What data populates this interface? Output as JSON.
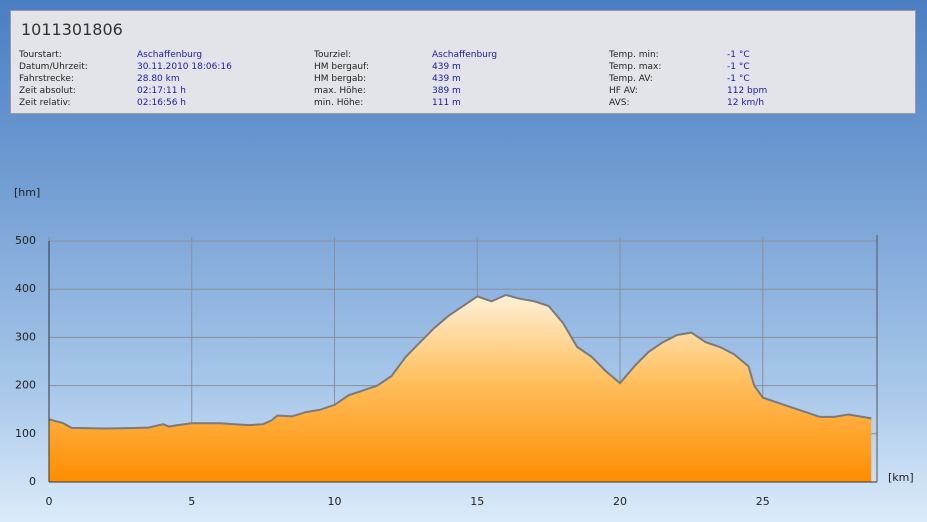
{
  "header": {
    "title": "1011301806"
  },
  "info": {
    "columns": [
      [
        [
          "Tourstart:",
          "Aschaffenburg"
        ],
        [
          "Datum/Uhrzeit:",
          "30.11.2010 18:06:16"
        ],
        [
          "Fahrstrecke:",
          "28.80 km"
        ],
        [
          "Zeit absolut:",
          "02:17:11 h"
        ],
        [
          "Zeit relativ:",
          "02:16:56 h"
        ]
      ],
      [
        [
          "Tourziel:",
          "Aschaffenburg"
        ],
        [
          "HM bergauf:",
          "439 m"
        ],
        [
          "HM bergab:",
          "439 m"
        ],
        [
          "max. Höhe:",
          "389 m"
        ],
        [
          "min. Höhe:",
          "111 m"
        ]
      ],
      [
        [
          "Temp. min:",
          "-1 °C"
        ],
        [
          "Temp. max:",
          "-1 °C"
        ],
        [
          "Temp. AV:",
          "-1 °C"
        ],
        [
          "HF AV:",
          "112 bpm"
        ],
        [
          "AVS:",
          "12 km/h"
        ]
      ]
    ]
  },
  "chart_data": {
    "type": "area",
    "y_label": "[hm]",
    "x_label": "[km]",
    "x": [
      0,
      0.5,
      0.8,
      1,
      2,
      3,
      3.5,
      4,
      4.2,
      4.5,
      5,
      6,
      6.5,
      7,
      7.5,
      7.8,
      8,
      8.5,
      9,
      9.5,
      10,
      10.5,
      11,
      11.5,
      12,
      12.5,
      13,
      13.5,
      14,
      14.5,
      15,
      15.5,
      16,
      16.5,
      17,
      17.5,
      18,
      18.5,
      19,
      19.5,
      20,
      20.5,
      21,
      21.5,
      22,
      22.5,
      23,
      23.5,
      24,
      24.5,
      24.7,
      25,
      25.5,
      26,
      26.5,
      27,
      27.5,
      28,
      28.5,
      28.8
    ],
    "values": [
      130,
      122,
      112,
      112,
      111,
      112,
      113,
      120,
      115,
      118,
      122,
      122,
      120,
      118,
      120,
      128,
      138,
      136,
      145,
      150,
      160,
      180,
      190,
      200,
      220,
      260,
      290,
      320,
      345,
      365,
      385,
      375,
      388,
      380,
      375,
      365,
      330,
      280,
      260,
      230,
      205,
      240,
      270,
      290,
      305,
      310,
      290,
      280,
      265,
      240,
      200,
      175,
      165,
      155,
      145,
      135,
      135,
      140,
      135,
      132
    ],
    "color": "#7a7a7a",
    "grid": true,
    "xlim": [
      0,
      29
    ],
    "xticks": [
      0,
      5,
      10,
      15,
      20,
      25
    ],
    "ylim": [
      0,
      500
    ],
    "yticks": [
      0,
      100,
      200,
      300,
      400,
      500
    ]
  }
}
